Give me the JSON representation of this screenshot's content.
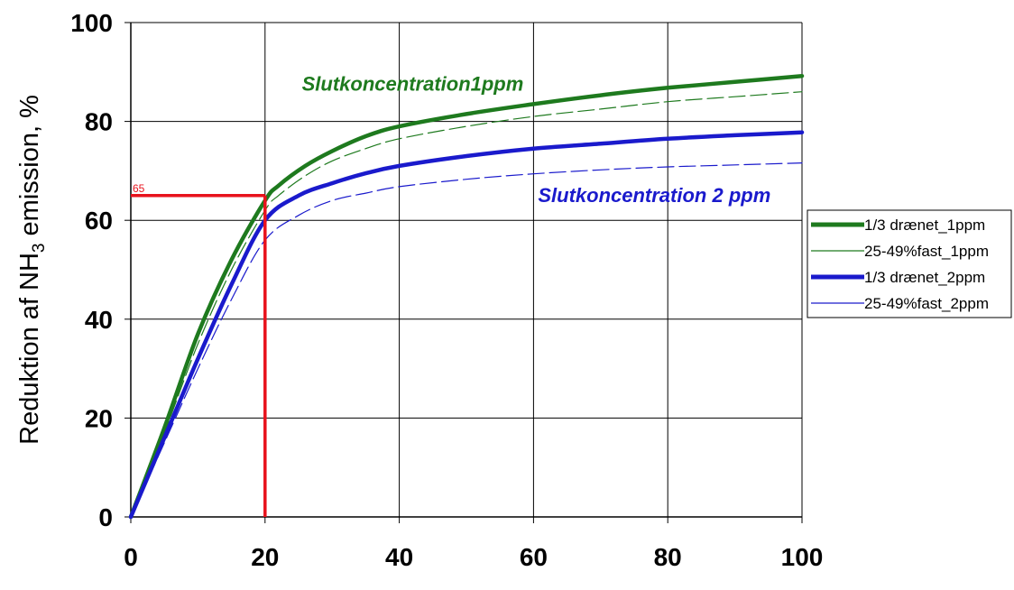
{
  "chart_data": {
    "type": "line",
    "title": "",
    "xlabel": "",
    "ylabel": {
      "before_sub": "Reduktion af NH",
      "sub": "3",
      "after_sub": " emission, %"
    },
    "xlim": [
      0,
      100
    ],
    "ylim": [
      0,
      100
    ],
    "x_ticks": [
      "0",
      "20",
      "40",
      "60",
      "80",
      "100"
    ],
    "y_ticks": [
      "0",
      "20",
      "40",
      "60",
      "80",
      "100"
    ],
    "grid": true,
    "legend_position": "right",
    "series": [
      {
        "name": "1/3 drænet_1ppm",
        "color": "#1e7a1e",
        "style": "solid-thick",
        "points": [
          [
            0,
            0
          ],
          [
            5,
            18
          ],
          [
            10,
            37
          ],
          [
            15,
            52
          ],
          [
            20,
            64
          ],
          [
            22,
            67
          ],
          [
            26,
            71
          ],
          [
            30,
            74
          ],
          [
            35,
            77
          ],
          [
            40,
            79
          ],
          [
            50,
            81.5
          ],
          [
            60,
            83.5
          ],
          [
            70,
            85.3
          ],
          [
            80,
            86.8
          ],
          [
            90,
            88
          ],
          [
            100,
            89.2
          ]
        ]
      },
      {
        "name": "25-49%fast_1ppm",
        "color": "#1e7a1e",
        "style": "dashed-thin",
        "points": [
          [
            0,
            0
          ],
          [
            5,
            17
          ],
          [
            10,
            35
          ],
          [
            15,
            50
          ],
          [
            20,
            62
          ],
          [
            22,
            65
          ],
          [
            26,
            69
          ],
          [
            30,
            72
          ],
          [
            35,
            74.5
          ],
          [
            40,
            76.5
          ],
          [
            50,
            79
          ],
          [
            60,
            81
          ],
          [
            70,
            82.5
          ],
          [
            80,
            84
          ],
          [
            90,
            85
          ],
          [
            100,
            86
          ]
        ]
      },
      {
        "name": "1/3 drænet_2ppm",
        "color": "#1a1acc",
        "style": "solid-thick",
        "points": [
          [
            0,
            0
          ],
          [
            5,
            16
          ],
          [
            10,
            32
          ],
          [
            15,
            47
          ],
          [
            20,
            60
          ],
          [
            25,
            65
          ],
          [
            30,
            67.5
          ],
          [
            35,
            69.5
          ],
          [
            40,
            71
          ],
          [
            50,
            73
          ],
          [
            60,
            74.5
          ],
          [
            70,
            75.5
          ],
          [
            80,
            76.5
          ],
          [
            90,
            77.2
          ],
          [
            100,
            77.8
          ]
        ]
      },
      {
        "name": "25-49%fast_2ppm",
        "color": "#1a1acc",
        "style": "dashed-thin",
        "points": [
          [
            0,
            0
          ],
          [
            5,
            15
          ],
          [
            10,
            30
          ],
          [
            15,
            44
          ],
          [
            20,
            56
          ],
          [
            25,
            61
          ],
          [
            30,
            64
          ],
          [
            35,
            65.5
          ],
          [
            40,
            66.8
          ],
          [
            50,
            68.3
          ],
          [
            60,
            69.4
          ],
          [
            70,
            70.2
          ],
          [
            80,
            70.8
          ],
          [
            90,
            71.2
          ],
          [
            100,
            71.6
          ]
        ]
      }
    ],
    "annotations": [
      {
        "text": "Slutkoncentration1ppm",
        "x": 42,
        "y": 87.5,
        "color": "#1e7a1e"
      },
      {
        "text": "Slutkoncentration 2 ppm",
        "x": 78,
        "y": 65,
        "color": "#1a1acc"
      }
    ],
    "reference_lines": {
      "x": 20,
      "y": 65,
      "label": "65",
      "color": "#e8121c"
    }
  }
}
